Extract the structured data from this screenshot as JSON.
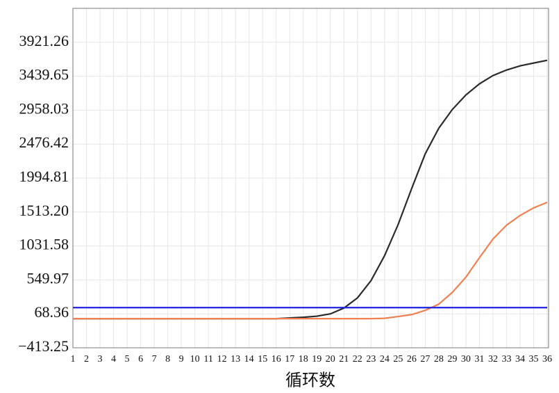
{
  "chart_data": {
    "type": "line",
    "x_label": "循环数",
    "x": [
      1,
      2,
      3,
      4,
      5,
      6,
      7,
      8,
      9,
      10,
      11,
      12,
      13,
      14,
      15,
      16,
      17,
      18,
      19,
      20,
      21,
      22,
      23,
      24,
      25,
      26,
      27,
      28,
      29,
      30,
      31,
      32,
      33,
      34,
      35,
      36
    ],
    "xlim": [
      1,
      36
    ],
    "xticks": [
      1,
      2,
      3,
      4,
      5,
      6,
      7,
      8,
      9,
      10,
      11,
      12,
      13,
      14,
      15,
      16,
      17,
      18,
      19,
      20,
      21,
      22,
      23,
      24,
      25,
      26,
      27,
      28,
      29,
      30,
      31,
      32,
      33,
      34,
      35,
      36
    ],
    "ylim": [
      -413.25,
      4402.87
    ],
    "yticks": [
      {
        "value": -413.25,
        "label": "−413.25"
      },
      68.36,
      549.97,
      1031.58,
      {
        "value": 1513.2,
        "label": "1513.20"
      },
      1994.81,
      2476.42,
      2958.03,
      3439.65,
      3921.26
    ],
    "grid": true,
    "series": [
      {
        "color": "#2a2a2a",
        "values": [
          0,
          0,
          0,
          0,
          0,
          0,
          0,
          0,
          0,
          0,
          0,
          0,
          0,
          0,
          0,
          0,
          10,
          20,
          35,
          68,
          150,
          295,
          540,
          894,
          1336,
          1847,
          2339,
          2702,
          2968,
          3174,
          3332,
          3450,
          3528,
          3587,
          3627,
          3666
        ]
      },
      {
        "color": "#f08050",
        "values": [
          0,
          0,
          0,
          0,
          0,
          0,
          0,
          0,
          0,
          0,
          0,
          0,
          0,
          0,
          0,
          0,
          0,
          0,
          0,
          0,
          0,
          0,
          0,
          5,
          30,
          58,
          118,
          206,
          373,
          589,
          865,
          1130,
          1327,
          1464,
          1572,
          1651
        ]
      },
      {
        "color": "#2020e0",
        "values": [
          157,
          157,
          157,
          157,
          157,
          157,
          157,
          157,
          157,
          157,
          157,
          157,
          157,
          157,
          157,
          157,
          157,
          157,
          157,
          157,
          157,
          157,
          157,
          157,
          157,
          157,
          157,
          157,
          157,
          157,
          157,
          157,
          157,
          157,
          157,
          157
        ]
      }
    ]
  }
}
